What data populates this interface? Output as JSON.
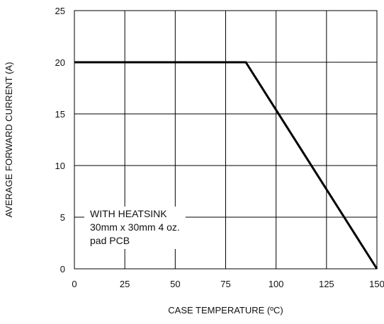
{
  "chart_data": {
    "type": "line",
    "xlabel": "CASE TEMPERATURE (ºC)",
    "ylabel": "AVERAGE FORWARD CURRENT (A)",
    "xlim": [
      0,
      150
    ],
    "ylim": [
      0,
      25
    ],
    "x_ticks": [
      0,
      25,
      50,
      75,
      100,
      125,
      150
    ],
    "y_ticks": [
      0,
      5,
      10,
      15,
      20,
      25
    ],
    "grid": true,
    "series": [
      {
        "x": [
          0,
          85,
          150
        ],
        "y": [
          20,
          20,
          0
        ],
        "color": "#000000"
      }
    ],
    "annotation": {
      "lines": [
        "WITH HEATSINK",
        "30mm x 30mm 4 oz.",
        "pad PCB"
      ]
    }
  }
}
